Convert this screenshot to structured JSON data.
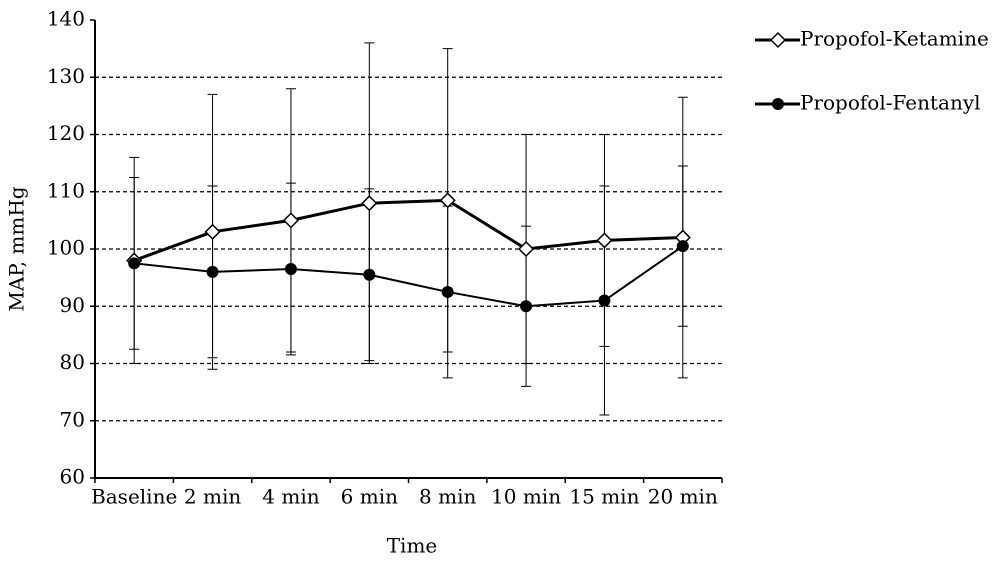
{
  "chart_data": {
    "type": "line",
    "x_label": "Time",
    "y_label": "MAP, mmHg",
    "categories": [
      "Baseline",
      "2 min",
      "4 min",
      "6 min",
      "8 min",
      "10 min",
      "15 min",
      "20 min"
    ],
    "series": [
      {
        "name": "Propofol-Ketamine",
        "color": "#000000",
        "marker": "diamond",
        "values": [
          98,
          103,
          105,
          108,
          108.5,
          100,
          101.5,
          102
        ],
        "errors": [
          18,
          24,
          23,
          28,
          26.5,
          20,
          18.5,
          24.5
        ]
      },
      {
        "name": "Propofol-Fentanyl",
        "color": "#000000",
        "marker": "circle",
        "values": [
          97.5,
          96,
          96.5,
          95.5,
          92.5,
          90,
          91,
          100.5
        ],
        "errors": [
          15,
          15,
          15,
          15,
          15,
          14,
          20,
          14
        ]
      }
    ],
    "ylim": [
      60,
      140
    ],
    "yticks": [
      60,
      70,
      80,
      90,
      100,
      110,
      120,
      130,
      140
    ],
    "grid": true,
    "legend": "right"
  }
}
